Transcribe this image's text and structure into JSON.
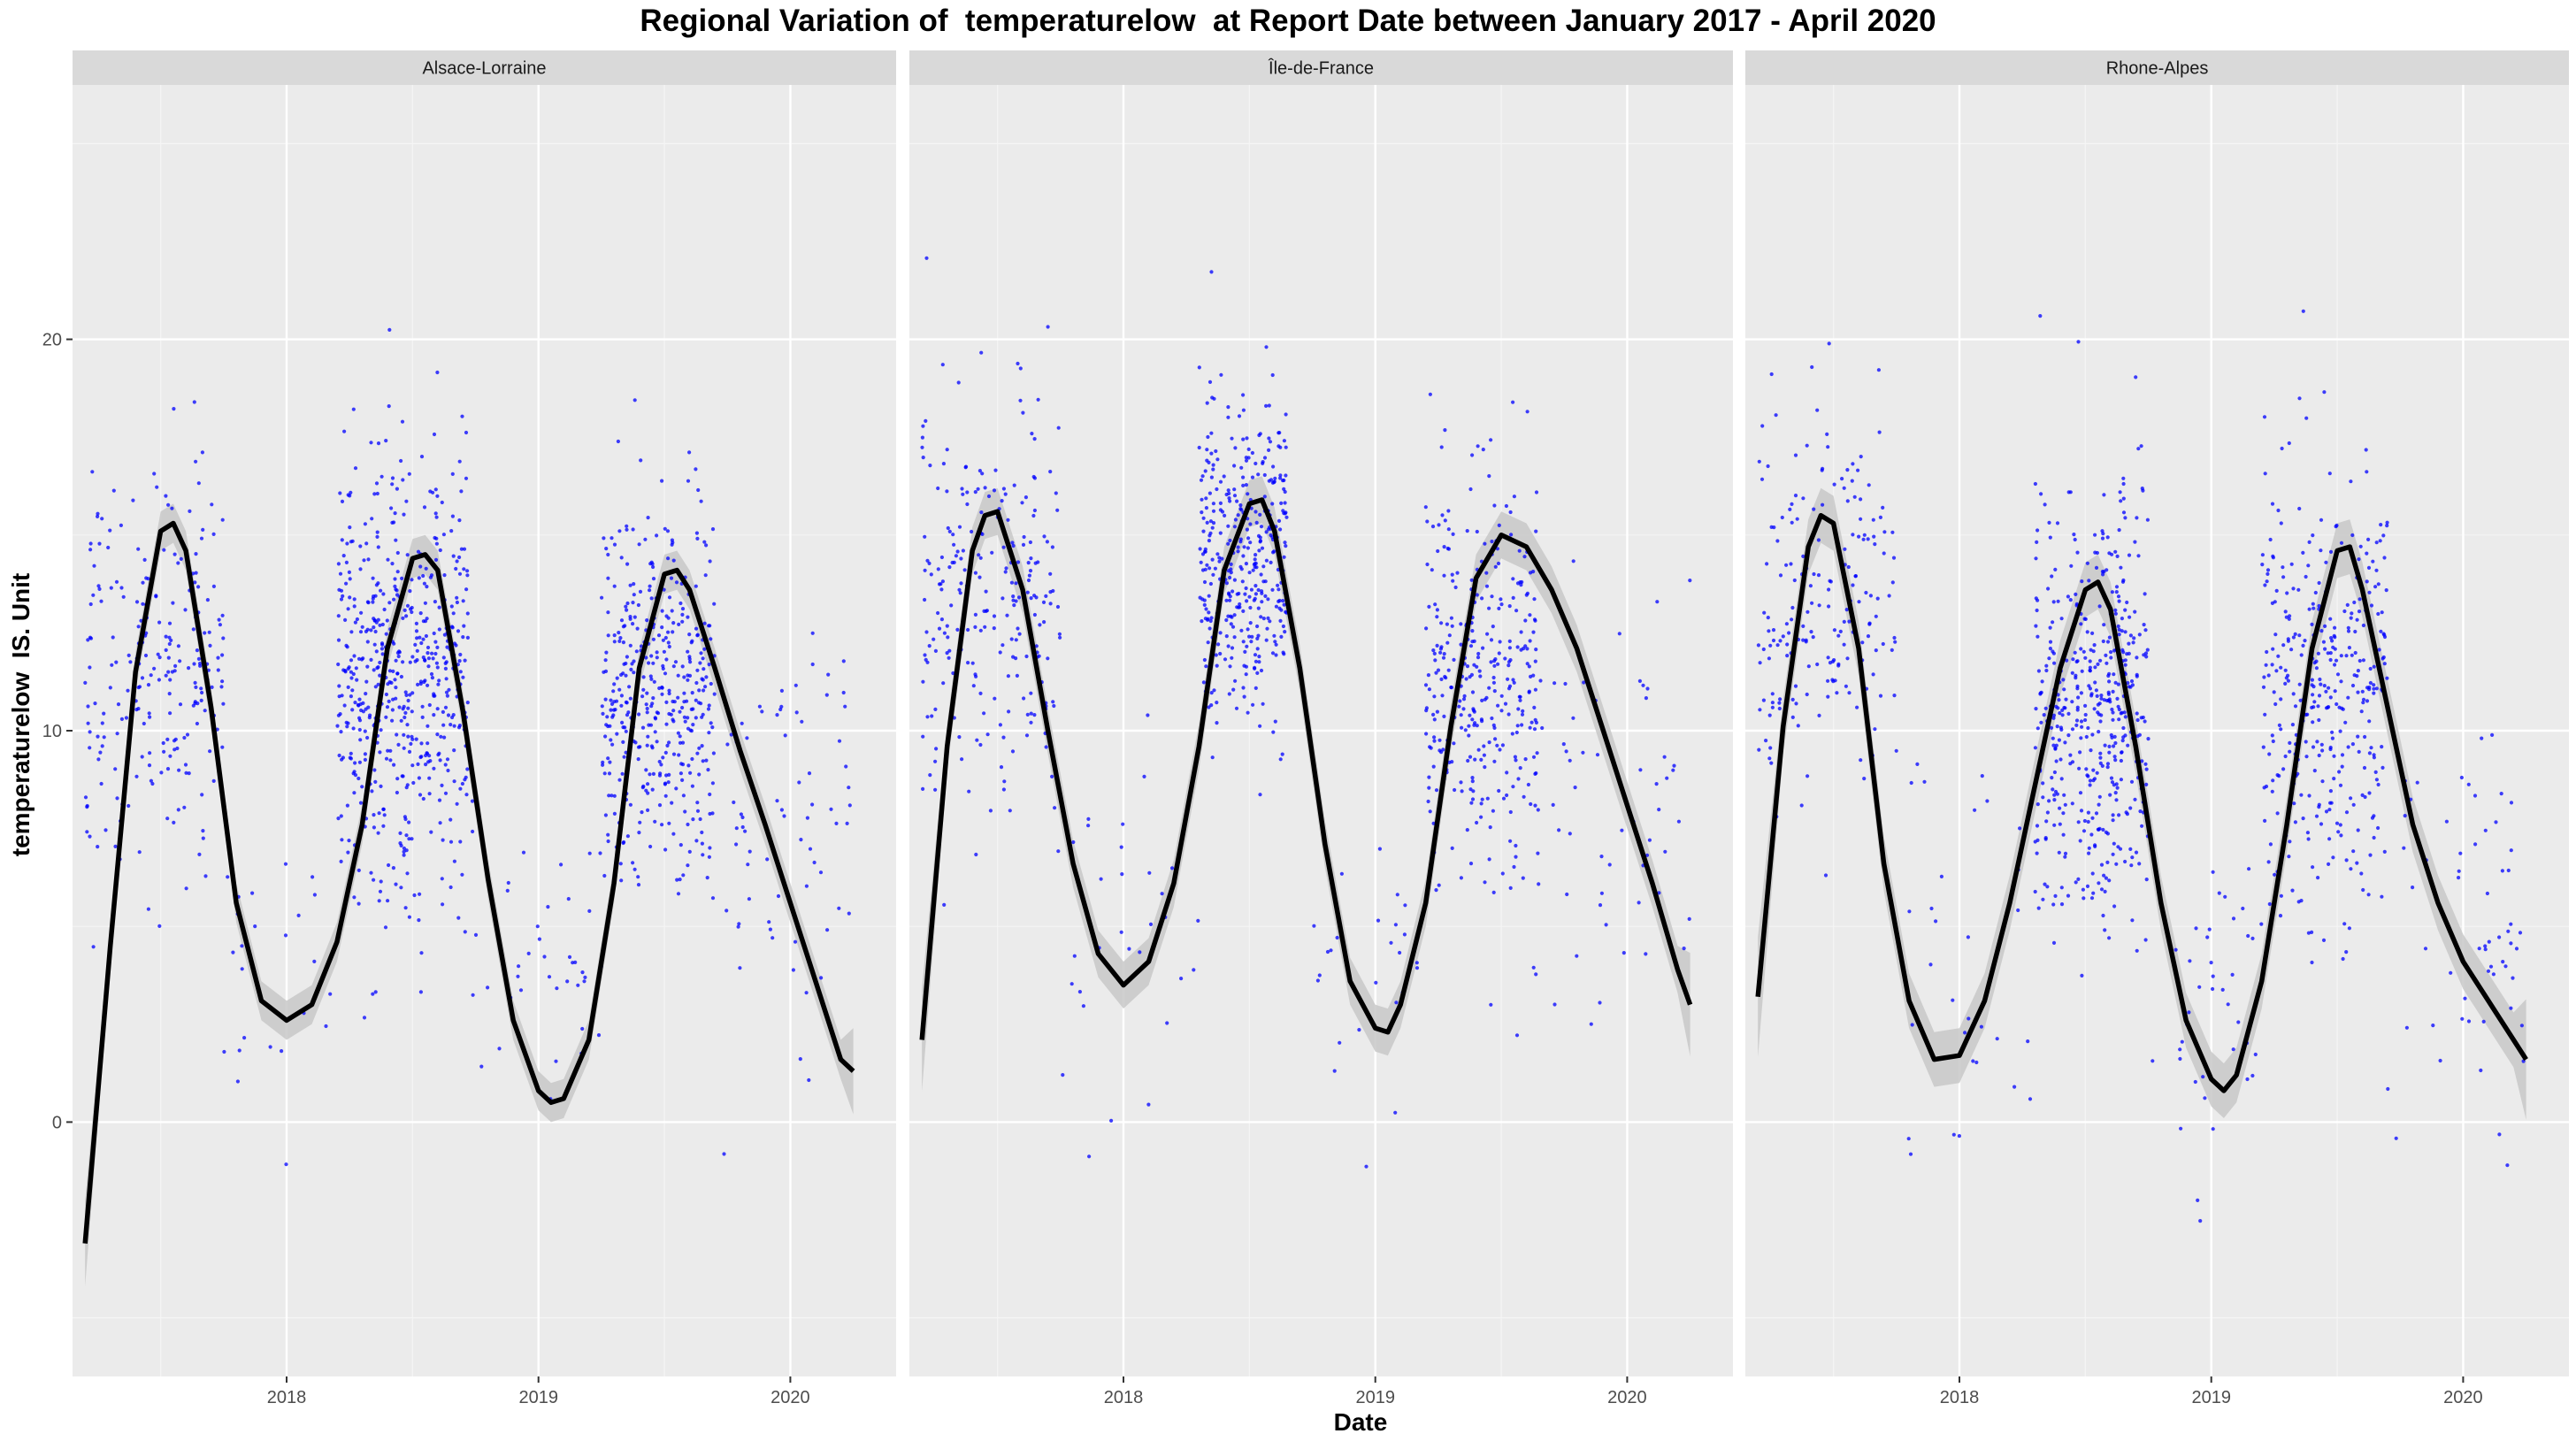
{
  "chart_data": {
    "type": "scatter",
    "title": "Regional Variation of  temperaturelow  at Report Date between January 2017 - April 2020",
    "xlabel": "Date",
    "ylabel": "temperaturelow  IS. Unit",
    "xlim": [
      2017.15,
      2020.42
    ],
    "ylim": [
      -6.5,
      26.5
    ],
    "x_ticks": [
      2018,
      2019,
      2020
    ],
    "x_tick_labels": [
      "2018",
      "2019",
      "2020"
    ],
    "y_ticks": [
      0,
      10,
      20
    ],
    "y_tick_labels": [
      "0",
      "10",
      "20"
    ],
    "grid": true,
    "legend": "none",
    "point_color": "#0000ff",
    "line_color": "#000000",
    "ribbon_color": "#c8c8c8",
    "panel_bg": "#ebebeb",
    "strip_bg": "#d9d9d9",
    "panels": [
      {
        "name": "Alsace-Lorraine",
        "smooth": [
          [
            2017.2,
            -3.1
          ],
          [
            2017.3,
            4.5
          ],
          [
            2017.4,
            11.5
          ],
          [
            2017.5,
            15.1
          ],
          [
            2017.55,
            15.3
          ],
          [
            2017.6,
            14.6
          ],
          [
            2017.7,
            10.6
          ],
          [
            2017.8,
            5.6
          ],
          [
            2017.9,
            3.1
          ],
          [
            2018.0,
            2.6
          ],
          [
            2018.1,
            3.0
          ],
          [
            2018.2,
            4.6
          ],
          [
            2018.3,
            7.6
          ],
          [
            2018.4,
            12.1
          ],
          [
            2018.5,
            14.4
          ],
          [
            2018.55,
            14.5
          ],
          [
            2018.6,
            14.1
          ],
          [
            2018.7,
            10.5
          ],
          [
            2018.8,
            6.2
          ],
          [
            2018.9,
            2.6
          ],
          [
            2019.0,
            0.8
          ],
          [
            2019.05,
            0.5
          ],
          [
            2019.1,
            0.6
          ],
          [
            2019.2,
            2.1
          ],
          [
            2019.3,
            6.1
          ],
          [
            2019.4,
            11.6
          ],
          [
            2019.5,
            14.0
          ],
          [
            2019.55,
            14.1
          ],
          [
            2019.6,
            13.6
          ],
          [
            2019.7,
            11.6
          ],
          [
            2019.8,
            9.5
          ],
          [
            2019.9,
            7.6
          ],
          [
            2020.0,
            5.6
          ],
          [
            2020.1,
            3.6
          ],
          [
            2020.2,
            1.6
          ],
          [
            2020.25,
            1.3
          ]
        ],
        "band": 0.5,
        "clusters": [
          {
            "x": [
              2017.2,
              2017.75
            ],
            "center": 11.5,
            "spread": 4.0,
            "n": 230
          },
          {
            "x": [
              2018.2,
              2018.72
            ],
            "center": 11.5,
            "spread": 4.5,
            "n": 560
          },
          {
            "x": [
              2019.25,
              2019.7
            ],
            "center": 11.0,
            "spread": 4.2,
            "n": 420
          },
          {
            "x": [
              2017.75,
              2018.2
            ],
            "center": 3.5,
            "spread": 3.5,
            "n": 25
          },
          {
            "x": [
              2018.72,
              2019.25
            ],
            "center": 3.5,
            "spread": 3.5,
            "n": 40
          },
          {
            "x": [
              2019.7,
              2020.25
            ],
            "center": 7.5,
            "spread": 4.0,
            "n": 70
          }
        ]
      },
      {
        "name": "Île-de-France",
        "smooth": [
          [
            2017.2,
            2.1
          ],
          [
            2017.3,
            9.6
          ],
          [
            2017.4,
            14.6
          ],
          [
            2017.45,
            15.5
          ],
          [
            2017.5,
            15.6
          ],
          [
            2017.6,
            13.6
          ],
          [
            2017.7,
            10.0
          ],
          [
            2017.8,
            6.6
          ],
          [
            2017.9,
            4.3
          ],
          [
            2018.0,
            3.5
          ],
          [
            2018.1,
            4.1
          ],
          [
            2018.2,
            6.1
          ],
          [
            2018.3,
            9.6
          ],
          [
            2018.4,
            14.1
          ],
          [
            2018.5,
            15.8
          ],
          [
            2018.55,
            15.9
          ],
          [
            2018.6,
            15.1
          ],
          [
            2018.7,
            11.6
          ],
          [
            2018.8,
            7.1
          ],
          [
            2018.9,
            3.6
          ],
          [
            2019.0,
            2.4
          ],
          [
            2019.05,
            2.3
          ],
          [
            2019.1,
            3.0
          ],
          [
            2019.2,
            5.6
          ],
          [
            2019.3,
            10.1
          ],
          [
            2019.4,
            13.9
          ],
          [
            2019.5,
            15.0
          ],
          [
            2019.6,
            14.7
          ],
          [
            2019.7,
            13.6
          ],
          [
            2019.8,
            12.1
          ],
          [
            2019.9,
            10.1
          ],
          [
            2020.0,
            8.1
          ],
          [
            2020.1,
            6.1
          ],
          [
            2020.2,
            3.9
          ],
          [
            2020.25,
            3.0
          ]
        ],
        "band": 0.6,
        "clusters": [
          {
            "x": [
              2017.2,
              2017.75
            ],
            "center": 13.5,
            "spread": 4.0,
            "n": 240
          },
          {
            "x": [
              2018.3,
              2018.65
            ],
            "center": 14.5,
            "spread": 3.5,
            "n": 380
          },
          {
            "x": [
              2019.2,
              2019.65
            ],
            "center": 11.5,
            "spread": 4.5,
            "n": 340
          },
          {
            "x": [
              2017.75,
              2018.3
            ],
            "center": 5.0,
            "spread": 4.0,
            "n": 30
          },
          {
            "x": [
              2018.65,
              2019.2
            ],
            "center": 4.0,
            "spread": 3.5,
            "n": 25
          },
          {
            "x": [
              2019.65,
              2020.25
            ],
            "center": 8.0,
            "spread": 4.5,
            "n": 55
          }
        ]
      },
      {
        "name": "Rhone-Alpes",
        "smooth": [
          [
            2017.2,
            3.2
          ],
          [
            2017.3,
            10.1
          ],
          [
            2017.4,
            14.7
          ],
          [
            2017.45,
            15.5
          ],
          [
            2017.5,
            15.3
          ],
          [
            2017.6,
            12.1
          ],
          [
            2017.7,
            6.6
          ],
          [
            2017.8,
            3.1
          ],
          [
            2017.9,
            1.6
          ],
          [
            2018.0,
            1.7
          ],
          [
            2018.1,
            3.1
          ],
          [
            2018.2,
            5.6
          ],
          [
            2018.3,
            8.6
          ],
          [
            2018.4,
            11.6
          ],
          [
            2018.5,
            13.6
          ],
          [
            2018.55,
            13.8
          ],
          [
            2018.6,
            13.1
          ],
          [
            2018.7,
            9.6
          ],
          [
            2018.8,
            5.6
          ],
          [
            2018.9,
            2.6
          ],
          [
            2019.0,
            1.1
          ],
          [
            2019.05,
            0.8
          ],
          [
            2019.1,
            1.2
          ],
          [
            2019.2,
            3.6
          ],
          [
            2019.3,
            7.6
          ],
          [
            2019.4,
            12.1
          ],
          [
            2019.5,
            14.6
          ],
          [
            2019.55,
            14.7
          ],
          [
            2019.6,
            13.6
          ],
          [
            2019.7,
            10.6
          ],
          [
            2019.8,
            7.6
          ],
          [
            2019.9,
            5.6
          ],
          [
            2020.0,
            4.1
          ],
          [
            2020.1,
            3.1
          ],
          [
            2020.2,
            2.1
          ],
          [
            2020.25,
            1.6
          ]
        ],
        "band": 0.7,
        "clusters": [
          {
            "x": [
              2017.2,
              2017.75
            ],
            "center": 13.0,
            "spread": 4.0,
            "n": 190
          },
          {
            "x": [
              2018.3,
              2018.75
            ],
            "center": 10.5,
            "spread": 4.5,
            "n": 470
          },
          {
            "x": [
              2019.2,
              2019.7
            ],
            "center": 11.0,
            "spread": 4.8,
            "n": 360
          },
          {
            "x": [
              2017.75,
              2018.3
            ],
            "center": 4.0,
            "spread": 4.0,
            "n": 30
          },
          {
            "x": [
              2018.75,
              2019.2
            ],
            "center": 3.0,
            "spread": 3.5,
            "n": 40
          },
          {
            "x": [
              2019.7,
              2020.25
            ],
            "center": 5.0,
            "spread": 4.5,
            "n": 60
          }
        ]
      }
    ]
  }
}
